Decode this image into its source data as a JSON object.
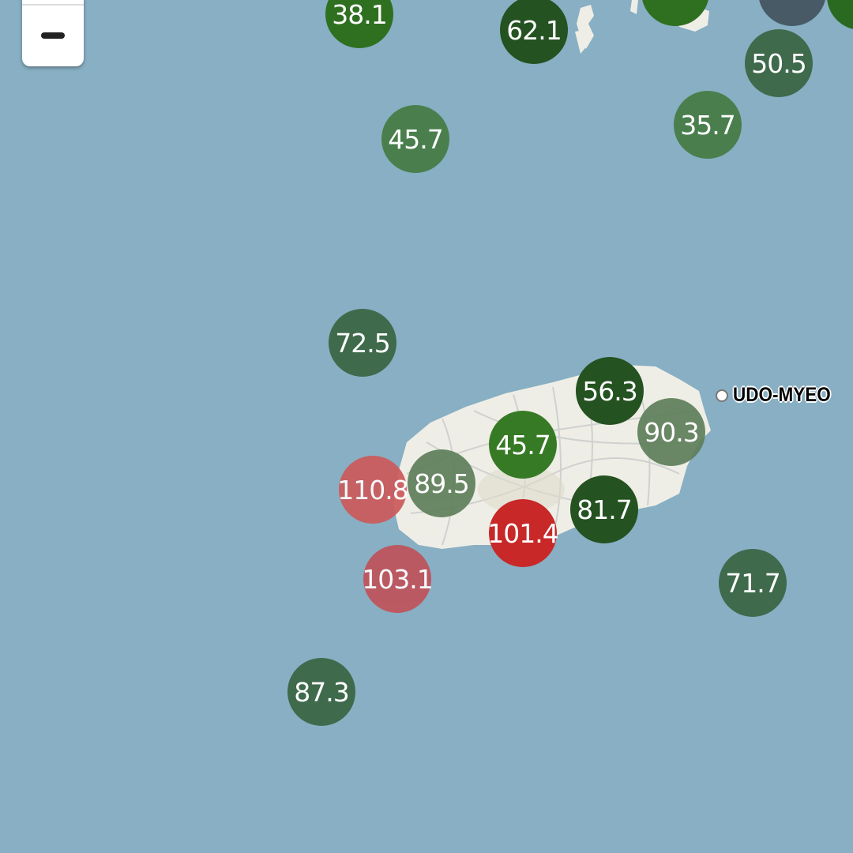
{
  "map": {
    "water_color": "#88afc3",
    "land_color": "#efeee6",
    "zoom_out_label": "−",
    "place_label": "UDO-MYEO"
  },
  "markers": [
    {
      "value": "38.1",
      "color": "#2e7020"
    },
    {
      "value": "62.1",
      "color": "#245220"
    },
    {
      "value": "",
      "color": "#2e7020"
    },
    {
      "value": "",
      "color": "#475a65"
    },
    {
      "value": "",
      "color": "#2a6a20"
    },
    {
      "value": "50.5",
      "color": "#3f6a4c"
    },
    {
      "value": "45.7",
      "color": "#4a7f4d"
    },
    {
      "value": "35.7",
      "color": "#4a7f4d"
    },
    {
      "value": "72.5",
      "color": "#3f6a4c"
    },
    {
      "value": "56.3",
      "color": "#245220"
    },
    {
      "value": "90.3",
      "color": "#5e7f5a"
    },
    {
      "value": "45.7",
      "color": "#377a25"
    },
    {
      "value": "110.8",
      "color": "#cc5a5a"
    },
    {
      "value": "89.5",
      "color": "#5e7f5a"
    },
    {
      "value": "81.7",
      "color": "#245220"
    },
    {
      "value": "101.4",
      "color": "#c82828"
    },
    {
      "value": "103.1",
      "color": "#c0525a"
    },
    {
      "value": "71.7",
      "color": "#3f6a4c"
    },
    {
      "value": "87.3",
      "color": "#3f6a4c"
    }
  ]
}
